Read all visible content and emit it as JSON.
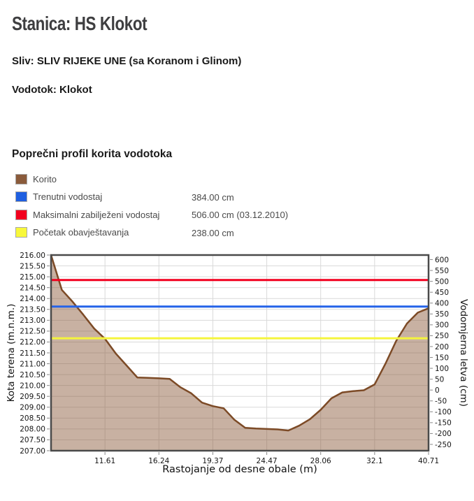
{
  "page": {
    "title": "Stanica: HS Klokot",
    "basin_line": "Sliv: SLIV RIJEKE UNE (sa Koranom i Glinom)",
    "watercourse_line": "Vodotok: Klokot",
    "section_heading": "Poprečni profil korita vodotoka"
  },
  "legend": [
    {
      "label": "Korito",
      "value": "",
      "color": "#8a5b3b"
    },
    {
      "label": "Trenutni vodostaj",
      "value": "384.00 cm",
      "color": "#1f5fe0"
    },
    {
      "label": "Maksimalni zabilježeni vodostaj",
      "value": "506.00 cm (03.12.2010)",
      "color": "#f2001e"
    },
    {
      "label": "Početak obavještavanja",
      "value": "238.00 cm",
      "color": "#f8f83a"
    }
  ],
  "chart_data": {
    "type": "area",
    "title": "Poprečni profil korita vodotoka",
    "x_axis": {
      "label": "Rastojanje od desne obale (m)",
      "tick_labels": [
        "11.61",
        "16.24",
        "19.37",
        "24.47",
        "28.06",
        "32.1",
        "40.71"
      ],
      "tick_indices": [
        5,
        10,
        15,
        20,
        25,
        30,
        35
      ],
      "scale": "ordinal"
    },
    "y_axis_left": {
      "label": "Kota terena (m.n.m.)",
      "min": 207.0,
      "max": 216.0,
      "step": 0.5,
      "tick_labels": [
        "216.00",
        "215.50",
        "215.00",
        "214.50",
        "214.00",
        "213.50",
        "213.00",
        "212.50",
        "212.00",
        "211.50",
        "211.00",
        "210.50",
        "210.00",
        "209.50",
        "209.00",
        "208.50",
        "208.00",
        "207.50",
        "207.00"
      ]
    },
    "y_axis_right": {
      "label": "Vodomjerna letva (cm)",
      "min": -250,
      "max": 600,
      "step": 50,
      "zero_elevation_mnm": 209.79,
      "tick_labels": [
        "600",
        "550",
        "500",
        "450",
        "400",
        "350",
        "300",
        "250",
        "200",
        "150",
        "100",
        "50",
        "0",
        "-50",
        "-100",
        "-150",
        "-200",
        "-250"
      ]
    },
    "profile": {
      "name": "Korito",
      "elevations_mnm": [
        216.0,
        214.4,
        213.85,
        213.25,
        212.62,
        212.15,
        211.47,
        210.92,
        210.37,
        210.35,
        210.33,
        210.3,
        209.92,
        209.64,
        209.21,
        209.05,
        208.95,
        208.42,
        208.05,
        208.02,
        208.0,
        207.98,
        207.93,
        208.15,
        208.45,
        208.88,
        209.41,
        209.68,
        209.74,
        209.78,
        210.05,
        211.0,
        212.05,
        212.85,
        213.35,
        213.55
      ]
    },
    "reference_lines": [
      {
        "name": "Početak obavještavanja",
        "value_cm": 238.0,
        "color": "#f5f53c"
      },
      {
        "name": "Trenutni vodostaj",
        "value_cm": 384.0,
        "color": "#2563e8"
      },
      {
        "name": "Maksimalni zabilježeni vodostaj",
        "value_cm": 506.0,
        "color": "#f2001e"
      }
    ],
    "series_colors": {
      "korito_fill": "rgba(139,92,60,0.48)",
      "korito_line": "#7c4a26"
    },
    "grid": {
      "horizontal": true,
      "vertical": true,
      "color": "#d9d9d9",
      "border_color": "#4a4a4a"
    }
  }
}
